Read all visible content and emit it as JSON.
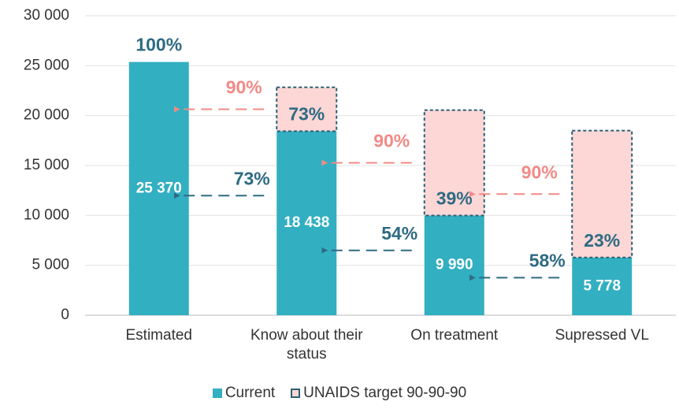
{
  "chart_data": {
    "type": "bar",
    "categories": [
      "Estimated",
      "Know about their status",
      "On treatment",
      "Supressed VL"
    ],
    "series": [
      {
        "name": "Current",
        "color": "#32afc1",
        "values": [
          25370,
          18438,
          9990,
          5778
        ],
        "value_labels": [
          "25 370",
          "18 438",
          "9 990",
          "5 778"
        ]
      },
      {
        "name": "UNAIDS target 90-90-90",
        "color": "#fdd6d6",
        "edge": "#2b6075",
        "values": [
          null,
          22833,
          20550,
          18495
        ]
      }
    ],
    "ylim": [
      0,
      30000
    ],
    "yticks": [
      0,
      {
        "value": 5000,
        "label": "5 000"
      },
      {
        "value": 10000,
        "label": "10 000"
      },
      {
        "value": 15000,
        "label": "15 000"
      },
      {
        "value": 20000,
        "label": "20 000"
      },
      {
        "value": 25000,
        "label": "25 000"
      },
      {
        "value": 30000,
        "label": "30 000"
      }
    ],
    "grid": true,
    "annotations": {
      "top_label": "100%",
      "inner_labels": [
        null,
        "73%",
        "39%",
        "23%"
      ],
      "target_step_labels": [
        null,
        "90%",
        "90%",
        "90%"
      ],
      "current_step_labels": [
        null,
        "73%",
        "54%",
        "58%"
      ],
      "target_color": "#f28a86",
      "current_color": "#2e6b82"
    }
  }
}
